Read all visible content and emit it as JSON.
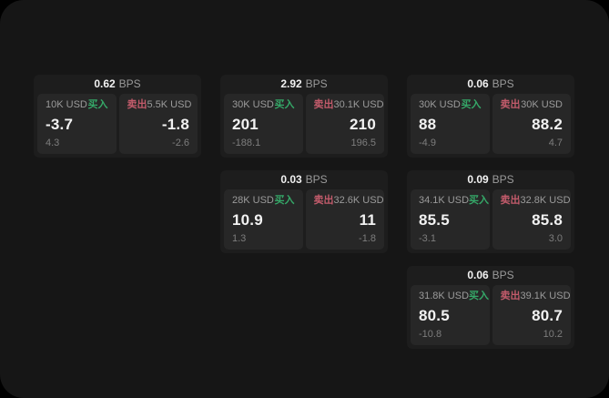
{
  "colors": {
    "page_bg": "#161616",
    "card_bg": "#1d1d1d",
    "panel_bg": "#272727",
    "text_primary": "#f2f2f2",
    "text_secondary": "#9b9b9b",
    "text_tertiary": "#7d7d7d",
    "buy_green": "#35a868",
    "sell_red": "#c25b6b"
  },
  "labels": {
    "bps_unit": "BPS",
    "buy": "买入",
    "sell": "卖出"
  },
  "cards": [
    {
      "bps": "0.62",
      "col": 1,
      "row": 1,
      "buy": {
        "amount": "10K USD",
        "value": "-3.7",
        "sub": "4.3"
      },
      "sell": {
        "amount": "5.5K USD",
        "value": "-1.8",
        "sub": "-2.6"
      }
    },
    {
      "bps": "2.92",
      "col": 2,
      "row": 1,
      "buy": {
        "amount": "30K USD",
        "value": "201",
        "sub": "-188.1"
      },
      "sell": {
        "amount": "30.1K USD",
        "value": "210",
        "sub": "196.5"
      }
    },
    {
      "bps": "0.06",
      "col": 3,
      "row": 1,
      "buy": {
        "amount": "30K USD",
        "value": "88",
        "sub": "-4.9"
      },
      "sell": {
        "amount": "30K USD",
        "value": "88.2",
        "sub": "4.7"
      }
    },
    {
      "bps": "0.03",
      "col": 2,
      "row": 2,
      "buy": {
        "amount": "28K USD",
        "value": "10.9",
        "sub": "1.3"
      },
      "sell": {
        "amount": "32.6K USD",
        "value": "11",
        "sub": "-1.8"
      }
    },
    {
      "bps": "0.09",
      "col": 3,
      "row": 2,
      "buy": {
        "amount": "34.1K USD",
        "value": "85.5",
        "sub": "-3.1"
      },
      "sell": {
        "amount": "32.8K USD",
        "value": "85.8",
        "sub": "3.0"
      }
    },
    {
      "bps": "0.06",
      "col": 3,
      "row": 3,
      "buy": {
        "amount": "31.8K USD",
        "value": "80.5",
        "sub": "-10.8"
      },
      "sell": {
        "amount": "39.1K USD",
        "value": "80.7",
        "sub": "10.2"
      }
    }
  ]
}
